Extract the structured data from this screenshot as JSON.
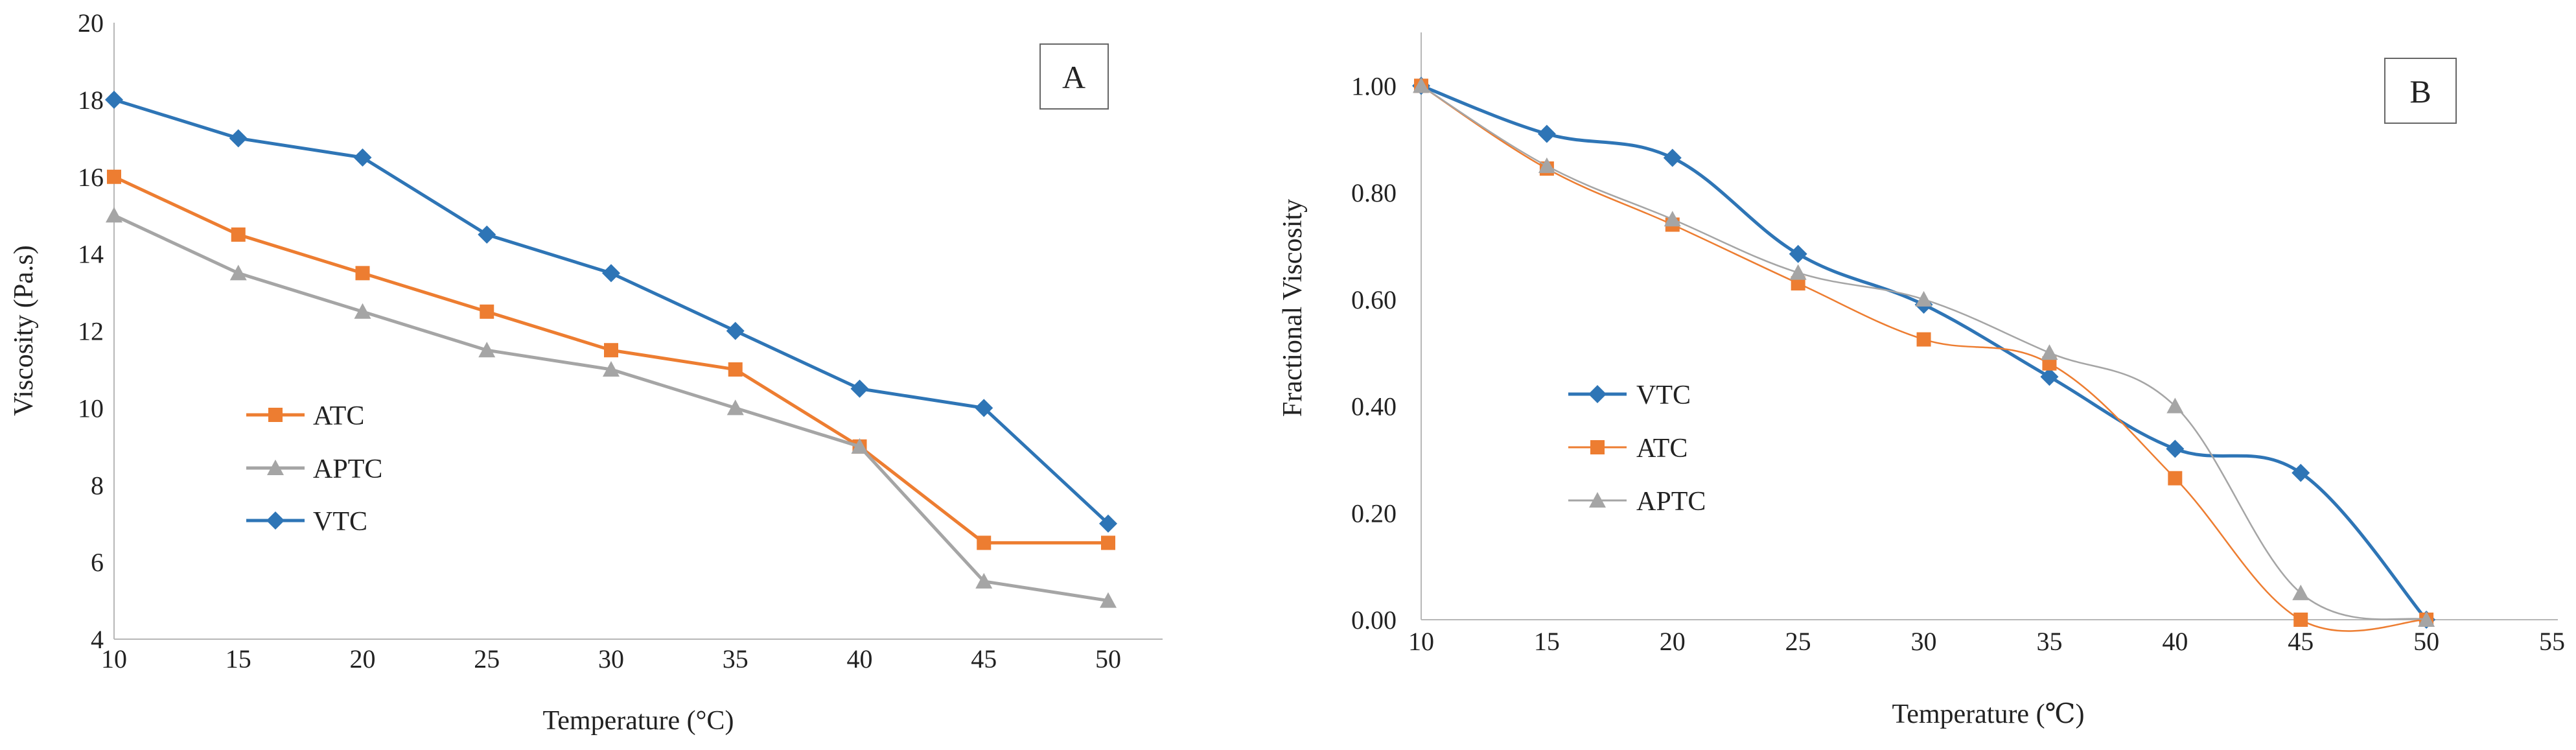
{
  "chart_data": [
    {
      "type": "line",
      "panel_label": "A",
      "title": "",
      "xlabel": "Temperature (°C)",
      "ylabel": "Viscosity (Pa.s)",
      "x": [
        10,
        15,
        20,
        25,
        30,
        35,
        40,
        45,
        50
      ],
      "xlim": [
        10,
        50
      ],
      "ylim": [
        4,
        20
      ],
      "xticks": [
        "10",
        "15",
        "20",
        "25",
        "30",
        "35",
        "40",
        "45",
        "50"
      ],
      "yticks": [
        "4",
        "6",
        "8",
        "10",
        "12",
        "14",
        "16",
        "18",
        "20"
      ],
      "smooth": false,
      "legend_position": "center-left",
      "series": [
        {
          "name": "ATC",
          "color": "#ED7D31",
          "marker": "square",
          "values": [
            16,
            14.5,
            13.5,
            12.5,
            11.5,
            11,
            9,
            6.5,
            6.5
          ]
        },
        {
          "name": "APTC",
          "color": "#A5A5A5",
          "marker": "triangle",
          "values": [
            15,
            13.5,
            12.5,
            11.5,
            11,
            10,
            9,
            5.5,
            5
          ]
        },
        {
          "name": "VTC",
          "color": "#2E75B6",
          "marker": "diamond",
          "values": [
            18,
            17,
            16.5,
            14.5,
            13.5,
            12,
            10.5,
            10,
            7
          ]
        }
      ]
    },
    {
      "type": "line",
      "panel_label": "B",
      "title": "",
      "xlabel": "Temperature (℃)",
      "ylabel": "Fractional Viscosity",
      "x": [
        10,
        15,
        20,
        25,
        30,
        35,
        40,
        45,
        50
      ],
      "xlim": [
        10,
        55
      ],
      "ylim": [
        0,
        1.1
      ],
      "xticks": [
        "10",
        "15",
        "20",
        "25",
        "30",
        "35",
        "40",
        "45",
        "50",
        "55"
      ],
      "yticks": [
        "0.00",
        "0.20",
        "0.40",
        "0.60",
        "0.80",
        "1.00"
      ],
      "smooth": true,
      "legend_position": "center-left",
      "series": [
        {
          "name": "VTC",
          "color": "#2E75B6",
          "marker": "diamond",
          "values": [
            1.0,
            0.91,
            0.865,
            0.685,
            0.59,
            0.455,
            0.32,
            0.275,
            0.0
          ]
        },
        {
          "name": "ATC",
          "color": "#ED7D31",
          "marker": "square",
          "values": [
            1.0,
            0.845,
            0.74,
            0.63,
            0.525,
            0.48,
            0.265,
            0.0,
            0.0
          ]
        },
        {
          "name": "APTC",
          "color": "#A5A5A5",
          "marker": "triangle",
          "values": [
            1.0,
            0.85,
            0.75,
            0.65,
            0.6,
            0.5,
            0.4,
            0.05,
            0.0
          ]
        }
      ]
    }
  ]
}
